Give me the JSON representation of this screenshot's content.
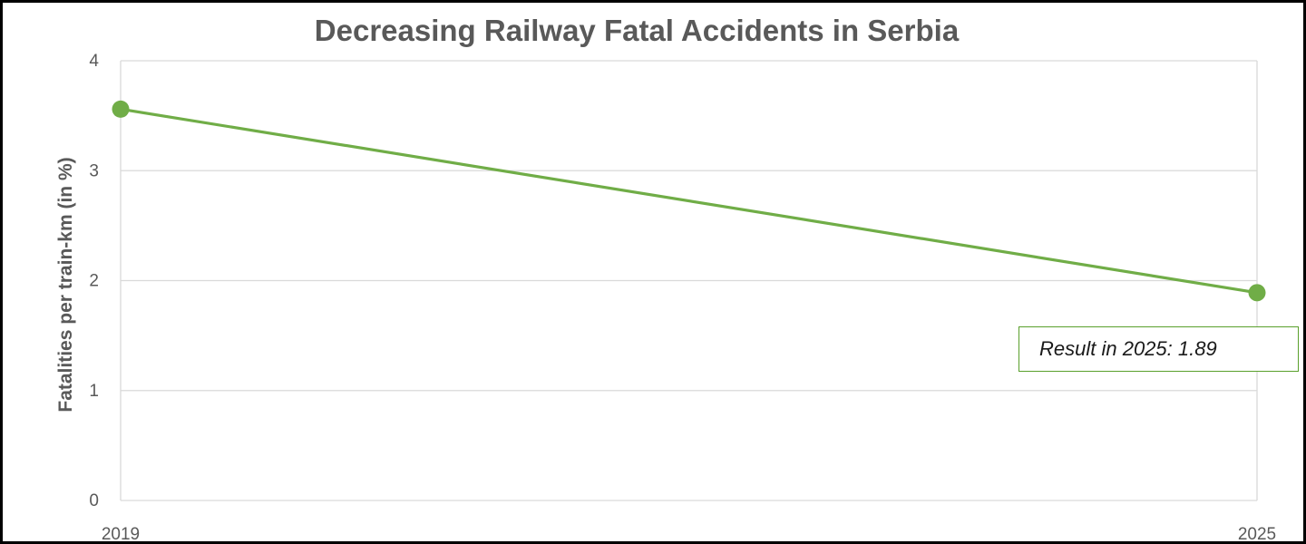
{
  "chart_data": {
    "type": "line",
    "title": "Decreasing Railway Fatal Accidents in Serbia",
    "xlabel": "",
    "ylabel": "Fatalities per train-km (in %)",
    "x": [
      "2019",
      "2025"
    ],
    "series": [
      {
        "values": [
          3.56,
          1.89
        ],
        "color": "#70ad47"
      }
    ],
    "ylim": [
      0,
      4
    ],
    "yticks": [
      "0",
      "1",
      "2",
      "3",
      "4"
    ],
    "grid": true,
    "annotation": "Result in 2025: 1.89",
    "annotation_border_color": "#5aa02c"
  }
}
